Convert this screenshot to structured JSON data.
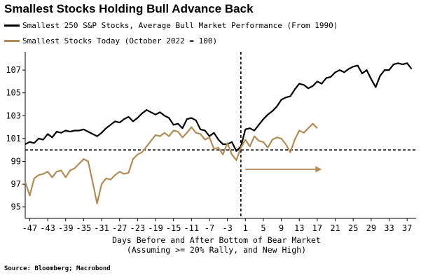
{
  "title": "Smallest Stocks Holding Bull Advance Back",
  "source": "Source: Bloomberg; Macrobond",
  "colors": {
    "avg": "#000000",
    "today": "#b08d57",
    "ref": "#000000"
  },
  "chart_data": {
    "type": "line",
    "title": "Smallest Stocks Holding Bull Advance Back",
    "xlabel": "Days Before and After Bottom of Bear Market",
    "xlabel2": "(Assuming >= 20% Rally, and New High)",
    "xlim": [
      -48,
      39
    ],
    "ylim": [
      94,
      108.6
    ],
    "xticks": [
      -47,
      -43,
      -39,
      -35,
      -31,
      -27,
      -23,
      -19,
      -15,
      -11,
      -7,
      -3,
      1,
      5,
      9,
      13,
      17,
      21,
      25,
      29,
      33,
      37
    ],
    "xtick_labels": [
      "-47",
      "-43",
      "-39",
      "-35",
      "-31",
      "-27",
      "-23",
      "-19",
      "-15",
      "-11",
      "-7",
      "-3",
      "1",
      "5",
      "9",
      "13",
      "17",
      "21",
      "25",
      "29",
      "33",
      "37"
    ],
    "yticks": [
      95,
      97,
      99,
      101,
      103,
      105,
      107
    ],
    "ytick_labels": [
      "95",
      "97",
      "99",
      "101",
      "103",
      "105",
      "107"
    ],
    "grid": false,
    "reference_lines": {
      "horizontal_y": 100,
      "vertical_x": 0
    },
    "arrow": {
      "x_start": 1,
      "x_end": 18,
      "y": 98.3
    },
    "series": [
      {
        "name": "Smallest 250 S&P Stocks, Average Bull Market Performance (From 1990)",
        "color": "#000000",
        "x": [
          -48,
          -47,
          -46,
          -45,
          -44,
          -43,
          -42,
          -41,
          -40,
          -39,
          -38,
          -37,
          -36,
          -35,
          -34,
          -33,
          -32,
          -31,
          -30,
          -29,
          -28,
          -27,
          -26,
          -25,
          -24,
          -23,
          -22,
          -21,
          -20,
          -19,
          -18,
          -17,
          -16,
          -15,
          -14,
          -13,
          -12,
          -11,
          -10,
          -9,
          -8,
          -7,
          -6,
          -5,
          -4,
          -3,
          -2,
          -1,
          0,
          1,
          2,
          3,
          4,
          5,
          6,
          7,
          8,
          9,
          10,
          11,
          12,
          13,
          14,
          15,
          16,
          17,
          18,
          19,
          20,
          21,
          22,
          23,
          24,
          25,
          26,
          27,
          28,
          29,
          30,
          31,
          32,
          33,
          34,
          35,
          36,
          37,
          38
        ],
        "values": [
          100.5,
          100.7,
          100.6,
          101.0,
          100.9,
          101.4,
          101.1,
          101.6,
          101.5,
          101.7,
          101.6,
          101.7,
          101.7,
          101.8,
          101.6,
          101.4,
          101.2,
          101.5,
          101.9,
          102.2,
          102.5,
          102.4,
          102.7,
          102.9,
          102.5,
          102.8,
          103.2,
          103.5,
          103.3,
          103.1,
          103.3,
          103.0,
          102.8,
          102.2,
          102.3,
          101.9,
          102.7,
          102.8,
          102.6,
          101.8,
          101.7,
          101.2,
          101.5,
          100.9,
          100.5,
          100.5,
          100.7,
          99.9,
          100.3,
          101.8,
          101.9,
          101.7,
          102.2,
          102.7,
          103.1,
          103.4,
          103.8,
          104.4,
          104.6,
          104.7,
          105.3,
          105.8,
          105.7,
          105.4,
          105.6,
          106.0,
          105.8,
          106.3,
          106.4,
          106.8,
          107.0,
          106.8,
          107.1,
          107.3,
          107.4,
          106.7,
          107.0,
          106.2,
          105.5,
          106.5,
          107.0,
          107.0,
          107.5,
          107.6,
          107.5,
          107.6,
          107.1
        ]
      },
      {
        "name": "Smallest Stocks Today (October 2022 = 100)",
        "color": "#b08d57",
        "x": [
          -48,
          -47,
          -46,
          -45,
          -44,
          -43,
          -42,
          -41,
          -40,
          -39,
          -38,
          -37,
          -36,
          -35,
          -34,
          -33,
          -32,
          -31,
          -30,
          -29,
          -28,
          -27,
          -26,
          -25,
          -24,
          -23,
          -22,
          -21,
          -20,
          -19,
          -18,
          -17,
          -16,
          -15,
          -14,
          -13,
          -12,
          -11,
          -10,
          -9,
          -8,
          -7,
          -6,
          -5,
          -4,
          -3,
          -2,
          -1,
          0,
          1,
          2,
          3,
          4,
          5,
          6,
          7,
          8,
          9,
          10,
          11,
          12,
          13,
          14,
          15,
          16,
          17,
          18
        ],
        "values": [
          97.2,
          96.0,
          97.5,
          97.8,
          97.9,
          98.1,
          97.6,
          98.1,
          98.2,
          97.6,
          98.2,
          98.4,
          98.8,
          99.2,
          99.0,
          97.2,
          95.3,
          97.0,
          97.5,
          97.4,
          97.8,
          98.1,
          97.9,
          98.0,
          99.2,
          99.6,
          99.8,
          100.3,
          100.8,
          101.3,
          101.2,
          101.5,
          101.2,
          101.7,
          101.6,
          101.1,
          101.5,
          102.0,
          101.5,
          101.4,
          100.9,
          101.1,
          100.1,
          100.2,
          99.6,
          100.6,
          99.6,
          99.1,
          100.2,
          100.9,
          100.3,
          101.2,
          100.8,
          100.7,
          100.2,
          100.9,
          101.1,
          101.0,
          100.5,
          99.8,
          100.9,
          101.7,
          101.5,
          101.9,
          102.3,
          101.9,
          null
        ]
      }
    ]
  }
}
